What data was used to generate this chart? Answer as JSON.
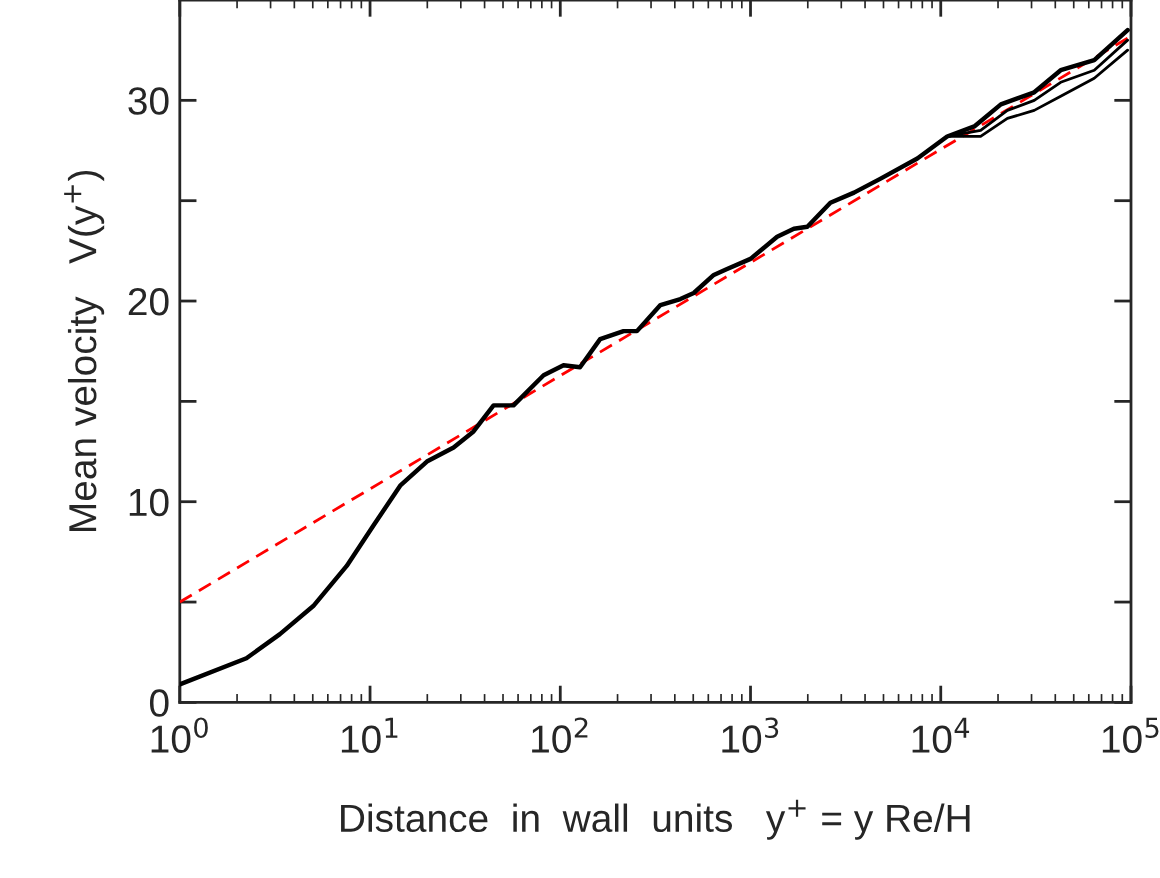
{
  "chart_data": {
    "type": "line",
    "xlabel": "Distance  in  wall  units   y$^{+}$ = y Re/H",
    "ylabel": "Mean velocity   V(y$^{+}$)",
    "log": "x",
    "xlim": [
      1,
      100000
    ],
    "ylim": [
      0,
      35
    ],
    "xticks": [
      {
        "value": 1,
        "label": "10$^{0}$"
      },
      {
        "value": 10,
        "label": "10$^{1}$"
      },
      {
        "value": 100,
        "label": "10$^{2}$"
      },
      {
        "value": 1000,
        "label": "10$^{3}$"
      },
      {
        "value": 10000,
        "label": "10$^{4}$"
      },
      {
        "value": 100000,
        "label": "10$^{5}$"
      }
    ],
    "yticks": [
      0,
      {
        "value": 5,
        "label": null
      },
      10,
      {
        "value": 15,
        "label": null
      },
      20,
      {
        "value": 25,
        "label": null
      },
      30
    ],
    "grid": false,
    "series": [
      {
        "color": "#000000",
        "line_style": "solid",
        "x": [
          1,
          2.24,
          3.36,
          5.03,
          7.54,
          10.4,
          14.4,
          19.9,
          27.5,
          35,
          44.6,
          56.8,
          81.7,
          104,
          127,
          162,
          215,
          253,
          336,
          428,
          503,
          641,
          753,
          1000,
          1380,
          1690,
          1990,
          2630,
          3500,
          4830,
          7530,
          10800,
          15000,
          20700,
          31000,
          42700,
          64100,
          96000
        ],
        "values": [
          0.9,
          2.2,
          3.4,
          4.8,
          6.8,
          8.8,
          10.8,
          12.0,
          12.7,
          13.5,
          14.8,
          14.8,
          16.3,
          16.8,
          16.7,
          18.1,
          18.5,
          18.5,
          19.8,
          20.1,
          20.4,
          21.3,
          21.6,
          22.1,
          23.2,
          23.6,
          23.7,
          24.9,
          25.4,
          26.1,
          27.1,
          28.2,
          28.7,
          29.8,
          30.4,
          31.5,
          32.0,
          33.5
        ]
      },
      {
        "color": "#000000",
        "line_style": "solid",
        "x": [
          10800,
          16200,
          22400,
          31000,
          42700,
          64100,
          96000
        ],
        "values": [
          28.2,
          28.5,
          29.5,
          30.0,
          30.9,
          31.5,
          33.0
        ]
      },
      {
        "color": "#000000",
        "line_style": "solid",
        "x": [
          10800,
          16200,
          22400,
          31000,
          42700,
          64100,
          96000
        ],
        "values": [
          28.2,
          28.2,
          29.1,
          29.5,
          30.2,
          31.1,
          32.5
        ]
      },
      {
        "color": "#ff0000",
        "line_style": "dashed",
        "x": [
          1,
          100000
        ],
        "values": [
          5.0,
          33.2
        ]
      }
    ]
  }
}
